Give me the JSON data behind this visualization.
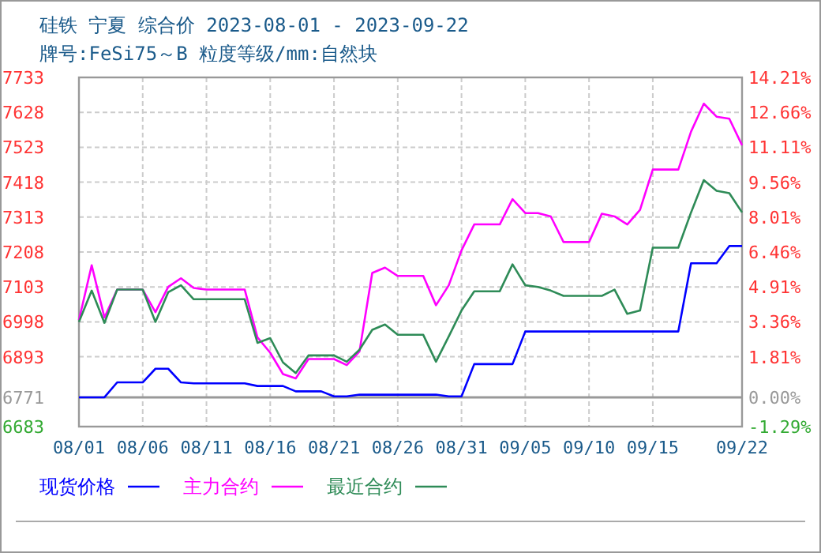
{
  "chart_data": {
    "type": "line",
    "title": "硅铁 宁夏 综合价 2023-08-01 - 2023-09-22",
    "subtitle": "牌号:FeSi75～B 粒度等级/mm:自然块",
    "x": [
      "2023-08-01",
      "2023-08-02",
      "2023-08-03",
      "2023-08-04",
      "2023-08-05",
      "2023-08-06",
      "2023-08-07",
      "2023-08-08",
      "2023-08-09",
      "2023-08-10",
      "2023-08-11",
      "2023-08-12",
      "2023-08-13",
      "2023-08-14",
      "2023-08-15",
      "2023-08-16",
      "2023-08-17",
      "2023-08-18",
      "2023-08-19",
      "2023-08-20",
      "2023-08-21",
      "2023-08-22",
      "2023-08-23",
      "2023-08-24",
      "2023-08-25",
      "2023-08-26",
      "2023-08-27",
      "2023-08-28",
      "2023-08-29",
      "2023-08-30",
      "2023-08-31",
      "2023-09-01",
      "2023-09-02",
      "2023-09-03",
      "2023-09-04",
      "2023-09-05",
      "2023-09-06",
      "2023-09-07",
      "2023-09-08",
      "2023-09-09",
      "2023-09-10",
      "2023-09-11",
      "2023-09-12",
      "2023-09-13",
      "2023-09-14",
      "2023-09-15",
      "2023-09-16",
      "2023-09-17",
      "2023-09-18",
      "2023-09-19",
      "2023-09-20",
      "2023-09-21",
      "2023-09-22"
    ],
    "series": [
      {
        "name": "现货价格",
        "color": "#0000ff",
        "values": [
          6771,
          6771,
          6771,
          6816,
          6816,
          6816,
          6857,
          6857,
          6816,
          6813,
          6813,
          6813,
          6813,
          6813,
          6805,
          6805,
          6805,
          6789,
          6789,
          6789,
          6774,
          6774,
          6779,
          6779,
          6779,
          6779,
          6779,
          6779,
          6779,
          6774,
          6774,
          6871,
          6871,
          6871,
          6871,
          6969,
          6969,
          6969,
          6969,
          6969,
          6969,
          6969,
          6969,
          6969,
          6969,
          6969,
          6969,
          6969,
          7174,
          7174,
          7174,
          7226,
          7226
        ]
      },
      {
        "name": "主力合约",
        "color": "#ff00ff",
        "values": [
          7003,
          7168,
          7011,
          7095,
          7095,
          7095,
          7027,
          7103,
          7129,
          7100,
          7095,
          7095,
          7095,
          7095,
          6951,
          6905,
          6841,
          6828,
          6886,
          6886,
          6886,
          6868,
          6909,
          7145,
          7161,
          7136,
          7136,
          7136,
          7048,
          7108,
          7213,
          7291,
          7291,
          7291,
          7367,
          7325,
          7325,
          7315,
          7238,
          7238,
          7238,
          7323,
          7315,
          7291,
          7335,
          7456,
          7456,
          7456,
          7570,
          7654,
          7615,
          7609,
          7529
        ]
      },
      {
        "name": "最近合约",
        "color": "#2e8b57",
        "values": [
          6998,
          7092,
          6995,
          7095,
          7095,
          7095,
          6998,
          7087,
          7108,
          7066,
          7066,
          7066,
          7066,
          7066,
          6935,
          6949,
          6876,
          6844,
          6897,
          6897,
          6897,
          6878,
          6914,
          6974,
          6990,
          6959,
          6959,
          6959,
          6878,
          6954,
          7032,
          7090,
          7090,
          7090,
          7171,
          7108,
          7103,
          7092,
          7076,
          7076,
          7076,
          7076,
          7095,
          7022,
          7032,
          7221,
          7221,
          7221,
          7327,
          7424,
          7392,
          7385,
          7327
        ]
      }
    ],
    "xlim": [
      "2023-08-01",
      "2023-09-22"
    ],
    "xticks": [
      {
        "value": "2023-08-01",
        "label": "08/01"
      },
      {
        "value": "2023-08-06",
        "label": "08/06"
      },
      {
        "value": "2023-08-11",
        "label": "08/11"
      },
      {
        "value": "2023-08-16",
        "label": "08/16"
      },
      {
        "value": "2023-08-21",
        "label": "08/21"
      },
      {
        "value": "2023-08-26",
        "label": "08/26"
      },
      {
        "value": "2023-08-31",
        "label": "08/31"
      },
      {
        "value": "2023-09-05",
        "label": "09/05"
      },
      {
        "value": "2023-09-10",
        "label": "09/10"
      },
      {
        "value": "2023-09-15",
        "label": "09/15"
      },
      {
        "value": "2023-09-22",
        "label": "09/22"
      }
    ],
    "ylim": [
      6683,
      7733
    ],
    "yticks": [
      6683,
      6771,
      6893,
      6998,
      7103,
      7208,
      7313,
      7418,
      7523,
      7628,
      7733
    ],
    "y2lim": [
      -1.29,
      14.21
    ],
    "y2ticks": [
      {
        "value": -1.29,
        "label": "-1.29%"
      },
      {
        "value": 0,
        "label": "0.00%"
      },
      {
        "value": 1.81,
        "label": "1.81%"
      },
      {
        "value": 3.36,
        "label": "3.36%"
      },
      {
        "value": 4.91,
        "label": "4.91%"
      },
      {
        "value": 6.46,
        "label": "6.46%"
      },
      {
        "value": 8.01,
        "label": "8.01%"
      },
      {
        "value": 9.56,
        "label": "9.56%"
      },
      {
        "value": 11.11,
        "label": "11.11%"
      },
      {
        "value": 12.66,
        "label": "12.66%"
      },
      {
        "value": 14.21,
        "label": "14.21%"
      }
    ],
    "ref_lines": [
      {
        "axis": "y",
        "value": 6771,
        "color": "#999999",
        "line_style": "solid"
      }
    ],
    "grid": true,
    "legend": "bottom",
    "marker": "none",
    "line_style": "solid"
  }
}
